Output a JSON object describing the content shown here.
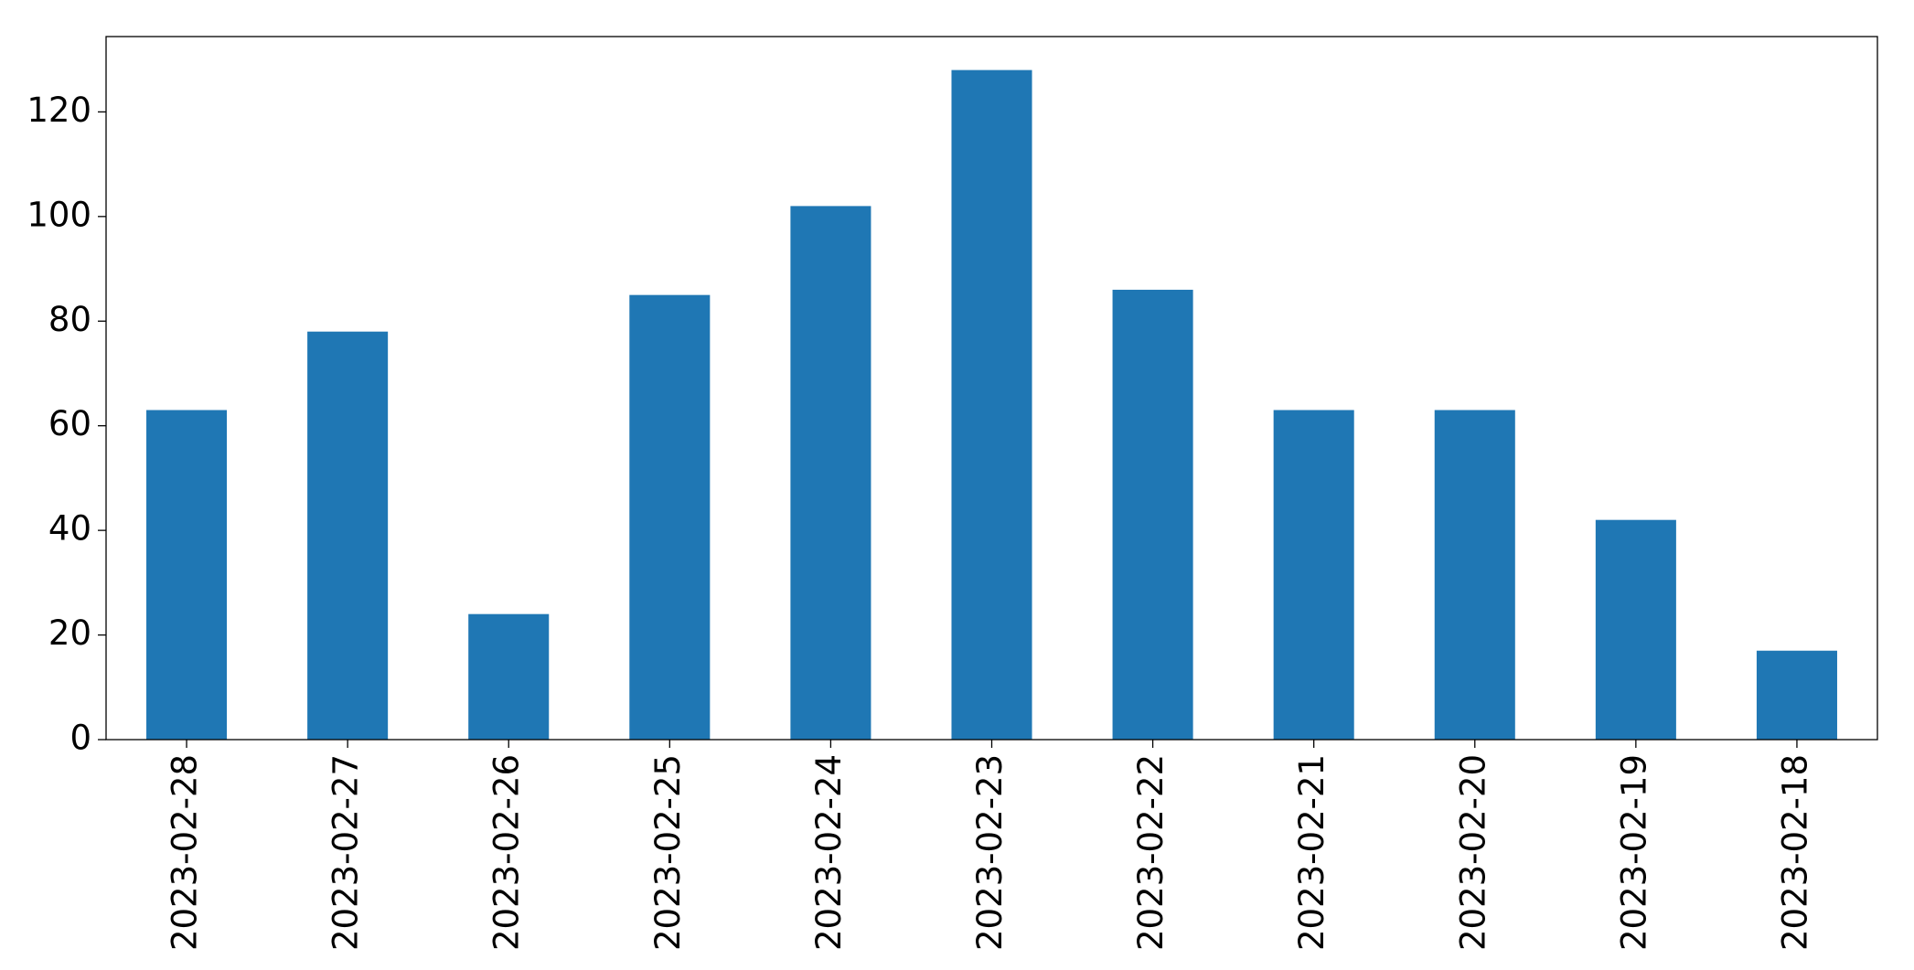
{
  "chart_data": {
    "type": "bar",
    "categories": [
      "2023-02-28",
      "2023-02-27",
      "2023-02-26",
      "2023-02-25",
      "2023-02-24",
      "2023-02-23",
      "2023-02-22",
      "2023-02-21",
      "2023-02-20",
      "2023-02-19",
      "2023-02-18"
    ],
    "values": [
      63,
      78,
      24,
      85,
      102,
      128,
      86,
      63,
      63,
      42,
      17
    ],
    "color": "#1f77b4",
    "ylim": [
      0,
      134.4
    ],
    "yticks": [
      0,
      20,
      40,
      60,
      80,
      100,
      120
    ],
    "grid": false
  }
}
